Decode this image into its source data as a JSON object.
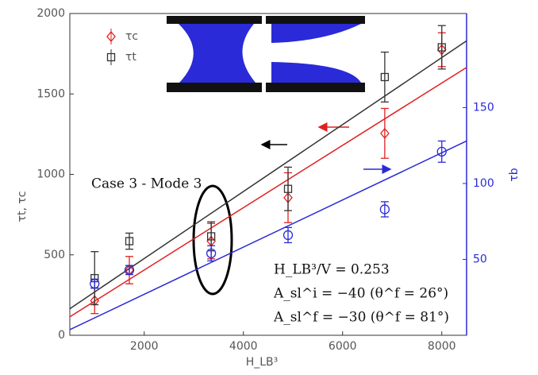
{
  "chart_data": {
    "type": "scatter",
    "x_label": "H_LB³",
    "y_label": "τt, τc",
    "y2_label": "τb",
    "xlim": [
      500,
      8500
    ],
    "ylim": [
      0,
      2000
    ],
    "y2lim": [
      0,
      212
    ],
    "xticks": [
      2000,
      4000,
      6000,
      8000
    ],
    "yticks": [
      0,
      500,
      1000,
      1500,
      2000
    ],
    "y2ticks": [
      50,
      100,
      150
    ],
    "y2_color": "#2a2ad8",
    "series": [
      {
        "name": "τc",
        "color": "#e02020",
        "marker": "diamond",
        "x": [
          1000,
          1700,
          3350,
          4900,
          6850,
          8000
        ],
        "values": [
          215,
          405,
          585,
          855,
          1255,
          1775
        ],
        "errors": [
          80,
          85,
          110,
          155,
          155,
          105
        ]
      },
      {
        "name": "τt",
        "color": "#333333",
        "marker": "square",
        "x": [
          1000,
          1700,
          3350,
          4900,
          6850,
          8000
        ],
        "values": [
          355,
          585,
          615,
          910,
          1605,
          1790
        ],
        "errors": [
          165,
          50,
          90,
          135,
          155,
          135
        ]
      },
      {
        "color": "#2a2ad8",
        "marker": "circle",
        "axis": "y2",
        "x": [
          1000,
          1700,
          3350,
          4900,
          6850,
          8000
        ],
        "values": [
          34,
          43,
          54,
          66,
          83,
          121
        ],
        "errors": [
          3,
          3,
          5,
          5,
          5,
          7
        ]
      }
    ],
    "fit_lines": [
      {
        "color": "#333333",
        "x": [
          500,
          8500
        ],
        "values": [
          165,
          1830
        ]
      },
      {
        "color": "#e02020",
        "x": [
          500,
          8500
        ],
        "values": [
          115,
          1665
        ]
      },
      {
        "color": "#2a2ad8",
        "axis": "y2",
        "x": [
          500,
          8500
        ],
        "values": [
          3.7,
          128
        ]
      }
    ],
    "annotations": [
      "Case 3 - Mode 3",
      "H_LB³/V = 0.253",
      "A_sl^i = −40 (θ^f = 26°)",
      "A_sl^f = −30 (θ^f = 81°)"
    ]
  }
}
